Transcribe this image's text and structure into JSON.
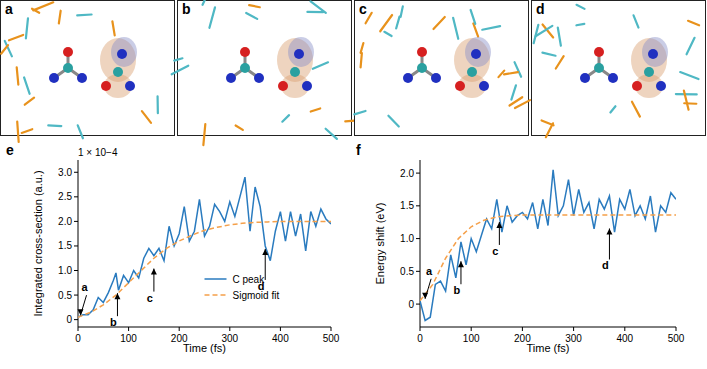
{
  "panels": [
    {
      "label": "a"
    },
    {
      "label": "b"
    },
    {
      "label": "c"
    },
    {
      "label": "d"
    }
  ],
  "chart_data": [
    {
      "type": "line",
      "title": "e",
      "subtitle": "1 × 10−4",
      "x_label": "Time (fs)",
      "y_label": "Integrated cross-section (a.u.)",
      "xlim": [
        0,
        500
      ],
      "xticks": [
        0,
        100,
        200,
        300,
        400,
        500
      ],
      "ylim": [
        -0.15,
        3.25
      ],
      "yticks": [
        0,
        {
          "value": 0.5,
          "label": "0.5"
        },
        {
          "value": 1,
          "label": "1.0"
        },
        {
          "value": 1.5,
          "label": "1.5"
        },
        {
          "value": 2,
          "label": "2.0"
        },
        {
          "value": 2.5,
          "label": "2.5"
        },
        {
          "value": 3,
          "label": "3.0"
        }
      ],
      "legend": "lower right",
      "grid": false,
      "series": [
        {
          "name": "C peak",
          "color": "#2a7bbf",
          "line_style": "solid",
          "x": [
            0,
            10,
            20,
            30,
            40,
            50,
            60,
            70,
            75,
            80,
            90,
            100,
            110,
            120,
            130,
            140,
            150,
            160,
            170,
            180,
            190,
            200,
            210,
            220,
            230,
            240,
            250,
            260,
            270,
            280,
            290,
            300,
            310,
            320,
            330,
            340,
            350,
            360,
            370,
            380,
            390,
            400,
            410,
            420,
            430,
            440,
            450,
            460,
            470,
            480,
            490,
            500
          ],
          "values": [
            0.05,
            0.1,
            0.1,
            0.2,
            0.45,
            0.35,
            0.55,
            0.8,
            0.95,
            0.6,
            0.9,
            0.75,
            1.0,
            0.85,
            1.25,
            1.45,
            1.3,
            1.45,
            1.2,
            1.9,
            1.5,
            1.75,
            2.3,
            1.6,
            1.8,
            2.45,
            1.7,
            1.9,
            2.35,
            2.2,
            2.0,
            2.4,
            2.1,
            2.5,
            2.9,
            1.8,
            2.7,
            2.3,
            1.5,
            1.2,
            1.8,
            2.2,
            1.6,
            2.2,
            1.7,
            2.15,
            1.4,
            2.2,
            1.9,
            2.25,
            2.05,
            1.95
          ]
        },
        {
          "name": "Sigmoid fit",
          "color": "#f5a04a",
          "line_style": "dashed",
          "x": [
            0,
            25,
            50,
            75,
            100,
            125,
            150,
            175,
            200,
            225,
            250,
            275,
            300,
            325,
            350,
            375,
            400,
            425,
            450,
            475,
            500
          ],
          "values": [
            0.05,
            0.15,
            0.3,
            0.5,
            0.75,
            1.0,
            1.25,
            1.45,
            1.6,
            1.72,
            1.82,
            1.88,
            1.93,
            1.96,
            1.98,
            1.99,
            2.0,
            2.0,
            2.0,
            2.0,
            2.0
          ]
        }
      ],
      "annotations": [
        {
          "text": "a",
          "x": 5,
          "y": 0.05
        },
        {
          "text": "b",
          "x": 78,
          "y": 0.6
        },
        {
          "text": "c",
          "x": 150,
          "y": 1.1
        },
        {
          "text": "d",
          "x": 370,
          "y": 1.5
        }
      ]
    },
    {
      "type": "line",
      "title": "f",
      "x_label": "Time (fs)",
      "y_label": "Energy shift (eV)",
      "xlim": [
        0,
        500
      ],
      "xticks": [
        0,
        100,
        200,
        300,
        400,
        500
      ],
      "ylim": [
        -0.35,
        2.2
      ],
      "yticks": [
        0,
        {
          "value": 0.5,
          "label": "0.5"
        },
        {
          "value": 1,
          "label": "1.0"
        },
        {
          "value": 1.5,
          "label": "1.5"
        },
        {
          "value": 2,
          "label": "2.0"
        }
      ],
      "grid": false,
      "series": [
        {
          "color": "#2a7bbf",
          "line_style": "solid",
          "x": [
            0,
            5,
            10,
            20,
            30,
            40,
            50,
            60,
            70,
            80,
            90,
            100,
            110,
            120,
            130,
            140,
            150,
            160,
            170,
            180,
            190,
            200,
            210,
            220,
            230,
            240,
            250,
            260,
            270,
            280,
            290,
            300,
            310,
            320,
            330,
            340,
            350,
            360,
            370,
            380,
            390,
            400,
            410,
            420,
            430,
            440,
            450,
            460,
            470,
            480,
            490,
            500
          ],
          "values": [
            0.05,
            -0.1,
            -0.25,
            -0.2,
            0.3,
            0.35,
            0.2,
            0.75,
            0.4,
            0.95,
            0.6,
            1.0,
            0.8,
            1.05,
            1.3,
            1.15,
            1.6,
            1.1,
            1.5,
            1.25,
            1.35,
            1.4,
            1.3,
            1.55,
            1.15,
            1.6,
            1.2,
            2.05,
            1.35,
            1.5,
            1.9,
            1.35,
            1.75,
            1.4,
            1.55,
            1.15,
            1.6,
            1.45,
            1.65,
            1.1,
            1.6,
            1.45,
            1.75,
            1.35,
            1.5,
            1.3,
            1.65,
            1.1,
            1.5,
            1.4,
            1.7,
            1.6
          ]
        },
        {
          "color": "#f5a04a",
          "line_style": "dashed",
          "x": [
            0,
            25,
            50,
            75,
            100,
            125,
            150,
            175,
            200,
            250,
            300,
            350,
            400,
            450,
            500
          ],
          "values": [
            0.05,
            0.3,
            0.7,
            1.0,
            1.18,
            1.28,
            1.33,
            1.35,
            1.36,
            1.36,
            1.36,
            1.36,
            1.36,
            1.36,
            1.36
          ]
        }
      ],
      "annotations": [
        {
          "text": "a",
          "x": 10,
          "y": 0.05
        },
        {
          "text": "b",
          "x": 80,
          "y": 0.7
        },
        {
          "text": "c",
          "x": 155,
          "y": 1.3
        },
        {
          "text": "d",
          "x": 370,
          "y": 1.2
        }
      ]
    }
  ]
}
